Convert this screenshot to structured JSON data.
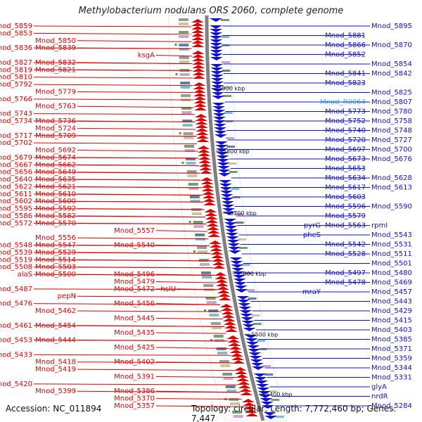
{
  "title": "Methylobacterium nodulans ORS 2060, complete genome",
  "footer": {
    "accession": "Accession: NC_011894",
    "summary": "Topology: circular; Length: 7,772,460 bp; Genes: 7,447"
  },
  "colors": {
    "reverse_strand": "#e00000",
    "forward_strand": "#1010d0",
    "rna": "#40c0d8",
    "backbone": "#808080",
    "tick": "#40a040"
  },
  "kbp_ticks": [
    {
      "label": "5900 kbp",
      "level": 0.18
    },
    {
      "label": "5800 kbp",
      "level": 0.335
    },
    {
      "label": "5700 kbp",
      "level": 0.488
    },
    {
      "label": "5600 kbp",
      "level": 0.637
    },
    {
      "label": "5500 kbp",
      "level": 0.787
    },
    {
      "label": "5400 kbp",
      "level": 0.935
    }
  ],
  "left_labels": [
    {
      "text": "Mnod_5859",
      "row": 0,
      "col": 0
    },
    {
      "text": "Mnod_5853",
      "row": 1,
      "col": 0
    },
    {
      "text": "Mnod_5850",
      "row": 2,
      "col": 1
    },
    {
      "text": "Mnod_5836",
      "row": 3,
      "col": 0
    },
    {
      "text": "Mnod_5839",
      "row": 3,
      "col": 1
    },
    {
      "text": "ksgA",
      "row": 4,
      "col": 2
    },
    {
      "text": "Mnod_5827",
      "row": 5,
      "col": 0
    },
    {
      "text": "Mnod_5832",
      "row": 5,
      "col": 1
    },
    {
      "text": "Mnod_5819",
      "row": 6,
      "col": 0
    },
    {
      "text": "Mnod_5821",
      "row": 6,
      "col": 1
    },
    {
      "text": "Mnod_5810",
      "row": 7,
      "col": 0
    },
    {
      "text": "Mnod_5792",
      "row": 8,
      "col": 0
    },
    {
      "text": "Mnod_5779",
      "row": 9,
      "col": 1
    },
    {
      "text": "Mnod_5766",
      "row": 10,
      "col": 0
    },
    {
      "text": "Mnod_5763",
      "row": 11,
      "col": 1
    },
    {
      "text": "Mnod_5743",
      "row": 12,
      "col": 0
    },
    {
      "text": "Mnod_5734",
      "row": 13,
      "col": 0
    },
    {
      "text": "Mnod_5736",
      "row": 13,
      "col": 1
    },
    {
      "text": "Mnod_5724",
      "row": 14,
      "col": 1
    },
    {
      "text": "Mnod_5717",
      "row": 15,
      "col": 0
    },
    {
      "text": "Mnod_5709",
      "row": 15,
      "col": 1
    },
    {
      "text": "Mnod_5702",
      "row": 16,
      "col": 0
    },
    {
      "text": "Mnod_5692",
      "row": 17,
      "col": 1
    },
    {
      "text": "Mnod_5679",
      "row": 18,
      "col": 0
    },
    {
      "text": "Mnod_5674",
      "row": 18,
      "col": 1
    },
    {
      "text": "Mnod_5667",
      "row": 19,
      "col": 0
    },
    {
      "text": "Mnod_5662",
      "row": 19,
      "col": 1
    },
    {
      "text": "Mnod_5656",
      "row": 20,
      "col": 0
    },
    {
      "text": "Mnod_5649",
      "row": 20,
      "col": 1
    },
    {
      "text": "Mnod_5640",
      "row": 21,
      "col": 0
    },
    {
      "text": "Mnod_5635",
      "row": 21,
      "col": 1
    },
    {
      "text": "Mnod_5622",
      "row": 22,
      "col": 0
    },
    {
      "text": "Mnod_5621",
      "row": 22,
      "col": 1
    },
    {
      "text": "Mnod_5611",
      "row": 23,
      "col": 0
    },
    {
      "text": "Mnod_5610",
      "row": 23,
      "col": 1
    },
    {
      "text": "Mnod_5602",
      "row": 24,
      "col": 0
    },
    {
      "text": "Mnod_5600",
      "row": 24,
      "col": 1
    },
    {
      "text": "Mnod_5595",
      "row": 25,
      "col": 0
    },
    {
      "text": "Mnod_5592",
      "row": 25,
      "col": 1
    },
    {
      "text": "Mnod_5586",
      "row": 26,
      "col": 0
    },
    {
      "text": "Mnod_5582",
      "row": 26,
      "col": 1
    },
    {
      "text": "Mnod_5572",
      "row": 27,
      "col": 0
    },
    {
      "text": "Mnod_5570",
      "row": 27,
      "col": 1
    },
    {
      "text": "Mnod_5557",
      "row": 28,
      "col": 2
    },
    {
      "text": "Mnod_5556",
      "row": 29,
      "col": 1
    },
    {
      "text": "Mnod_5548",
      "row": 30,
      "col": 0
    },
    {
      "text": "Mnod_5547",
      "row": 30,
      "col": 1
    },
    {
      "text": "Mnod_5540",
      "row": 30,
      "col": 2
    },
    {
      "text": "Mnod_5539",
      "row": 31,
      "col": 0
    },
    {
      "text": "Mnod_5529",
      "row": 31,
      "col": 1
    },
    {
      "text": "Mnod_5519",
      "row": 32,
      "col": 0
    },
    {
      "text": "Mnod_5514",
      "row": 32,
      "col": 1
    },
    {
      "text": "Mnod_5508",
      "row": 33,
      "col": 0
    },
    {
      "text": "Mnod_5503",
      "row": 33,
      "col": 1
    },
    {
      "text": "alaS",
      "row": 34,
      "col": 0
    },
    {
      "text": "Mnod_5500",
      "row": 34,
      "col": 1
    },
    {
      "text": "Mnod_5496",
      "row": 34,
      "col": 2
    },
    {
      "text": "Mnod_5479",
      "row": 35,
      "col": 2
    },
    {
      "text": "Mnod_5487",
      "row": 36,
      "col": 0
    },
    {
      "text": "Mnod_5472",
      "row": 36,
      "col": 2
    },
    {
      "text": "hslU",
      "row": 36,
      "col": 3
    },
    {
      "text": "pepN",
      "row": 37,
      "col": 1
    },
    {
      "text": "Mnod_5476",
      "row": 38,
      "col": 0
    },
    {
      "text": "Mnod_5456",
      "row": 38,
      "col": 2
    },
    {
      "text": "Mnod_5462",
      "row": 39,
      "col": 1
    },
    {
      "text": "Mnod_5445",
      "row": 40,
      "col": 2
    },
    {
      "text": "Mnod_5461",
      "row": 41,
      "col": 0
    },
    {
      "text": "Mnod_5454",
      "row": 41,
      "col": 1
    },
    {
      "text": "Mnod_5435",
      "row": 42,
      "col": 2
    },
    {
      "text": "Mnod_5453",
      "row": 43,
      "col": 0
    },
    {
      "text": "Mnod_5444",
      "row": 43,
      "col": 1
    },
    {
      "text": "Mnod_5425",
      "row": 44,
      "col": 2
    },
    {
      "text": "Mnod_5433",
      "row": 45,
      "col": 0
    },
    {
      "text": "Mnod_5418",
      "row": 46,
      "col": 1
    },
    {
      "text": "Mnod_5402",
      "row": 46,
      "col": 2
    },
    {
      "text": "Mnod_5419",
      "row": 47,
      "col": 1
    },
    {
      "text": "Mnod_5391",
      "row": 48,
      "col": 2
    },
    {
      "text": "Mnod_5420",
      "row": 49,
      "col": 0
    },
    {
      "text": "Mnod_5386",
      "row": 50,
      "col": 2
    },
    {
      "text": "Mnod_5399",
      "row": 50,
      "col": 1
    },
    {
      "text": "Mnod_5370",
      "row": 51,
      "col": 2
    },
    {
      "text": "Mnod_5357",
      "row": 52,
      "col": 2
    }
  ],
  "right_labels": [
    {
      "text": "Mnod_5895",
      "row": 0,
      "col": 2
    },
    {
      "text": "Mnod_5881",
      "row": 1,
      "col": 1
    },
    {
      "text": "Mnod_5866",
      "row": 2,
      "col": 1
    },
    {
      "text": "Mnod_5870",
      "row": 2,
      "col": 2
    },
    {
      "text": "Mnod_5852",
      "row": 3,
      "col": 1
    },
    {
      "text": "Mnod_5854",
      "row": 4,
      "col": 2
    },
    {
      "text": "Mnod_5841",
      "row": 5,
      "col": 1
    },
    {
      "text": "Mnod_5842",
      "row": 5,
      "col": 2
    },
    {
      "text": "Mnod_5823",
      "row": 6,
      "col": 1
    },
    {
      "text": "Mnod_5825",
      "row": 7,
      "col": 2
    },
    {
      "text": "Mnod_R0064",
      "row": 8,
      "col": 1,
      "rna": true
    },
    {
      "text": "Mnod_5807",
      "row": 8,
      "col": 2
    },
    {
      "text": "Mnod_5773",
      "row": 9,
      "col": 1
    },
    {
      "text": "Mnod_5780",
      "row": 9,
      "col": 2
    },
    {
      "text": "Mnod_5752",
      "row": 10,
      "col": 1
    },
    {
      "text": "Mnod_5758",
      "row": 10,
      "col": 2
    },
    {
      "text": "Mnod_5740",
      "row": 11,
      "col": 1
    },
    {
      "text": "Mnod_5748",
      "row": 11,
      "col": 2
    },
    {
      "text": "Mnod_5720",
      "row": 12,
      "col": 1
    },
    {
      "text": "Mnod_5727",
      "row": 12,
      "col": 2
    },
    {
      "text": "Mnod_5697",
      "row": 13,
      "col": 1
    },
    {
      "text": "Mnod_5700",
      "row": 13,
      "col": 2
    },
    {
      "text": "Mnod_5673",
      "row": 14,
      "col": 1
    },
    {
      "text": "Mnod_5676",
      "row": 14,
      "col": 2
    },
    {
      "text": "Mnod_5653",
      "row": 15,
      "col": 1
    },
    {
      "text": "Mnod_5634",
      "row": 16,
      "col": 1
    },
    {
      "text": "Mnod_5628",
      "row": 16,
      "col": 2
    },
    {
      "text": "Mnod_5617",
      "row": 17,
      "col": 1
    },
    {
      "text": "Mnod_5613",
      "row": 17,
      "col": 2
    },
    {
      "text": "Mnod_5603",
      "row": 18,
      "col": 1
    },
    {
      "text": "Mnod_5596",
      "row": 19,
      "col": 1
    },
    {
      "text": "Mnod_5590",
      "row": 19,
      "col": 2
    },
    {
      "text": "Mnod_5579",
      "row": 20,
      "col": 1
    },
    {
      "text": "pyrG",
      "row": 21,
      "col": 0
    },
    {
      "text": "Mnod_5563",
      "row": 21,
      "col": 1
    },
    {
      "text": "rpmI",
      "row": 21,
      "col": 2
    },
    {
      "text": "pheS",
      "row": 22,
      "col": 0
    },
    {
      "text": "Mnod_5543",
      "row": 22,
      "col": 2
    },
    {
      "text": "Mnod_5542",
      "row": 23,
      "col": 1
    },
    {
      "text": "Mnod_5531",
      "row": 23,
      "col": 2
    },
    {
      "text": "Mnod_5528",
      "row": 24,
      "col": 1
    },
    {
      "text": "Mnod_5511",
      "row": 24,
      "col": 2
    },
    {
      "text": "Mnod_5501",
      "row": 25,
      "col": 2
    },
    {
      "text": "Mnod_5497",
      "row": 26,
      "col": 1
    },
    {
      "text": "Mnod_5480",
      "row": 26,
      "col": 2
    },
    {
      "text": "Mnod_5478",
      "row": 27,
      "col": 1
    },
    {
      "text": "Mnod_5469",
      "row": 27,
      "col": 2
    },
    {
      "text": "mraY",
      "row": 28,
      "col": 0
    },
    {
      "text": "Mnod_5457",
      "row": 28,
      "col": 2
    },
    {
      "text": "Mnod_5443",
      "row": 29,
      "col": 2
    },
    {
      "text": "Mnod_5429",
      "row": 30,
      "col": 2
    },
    {
      "text": "Mnod_5415",
      "row": 31,
      "col": 2
    },
    {
      "text": "Mnod_5403",
      "row": 32,
      "col": 2
    },
    {
      "text": "Mnod_5385",
      "row": 33,
      "col": 2
    },
    {
      "text": "Mnod_5371",
      "row": 34,
      "col": 2
    },
    {
      "text": "Mnod_5359",
      "row": 35,
      "col": 2
    },
    {
      "text": "Mnod_5344",
      "row": 36,
      "col": 2
    },
    {
      "text": "Mnod_5331",
      "row": 37,
      "col": 2
    },
    {
      "text": "glyA",
      "row": 38,
      "col": 2
    },
    {
      "text": "nrdR",
      "row": 39,
      "col": 2
    },
    {
      "text": "Mnod_5284",
      "row": 40,
      "col": 2
    }
  ]
}
